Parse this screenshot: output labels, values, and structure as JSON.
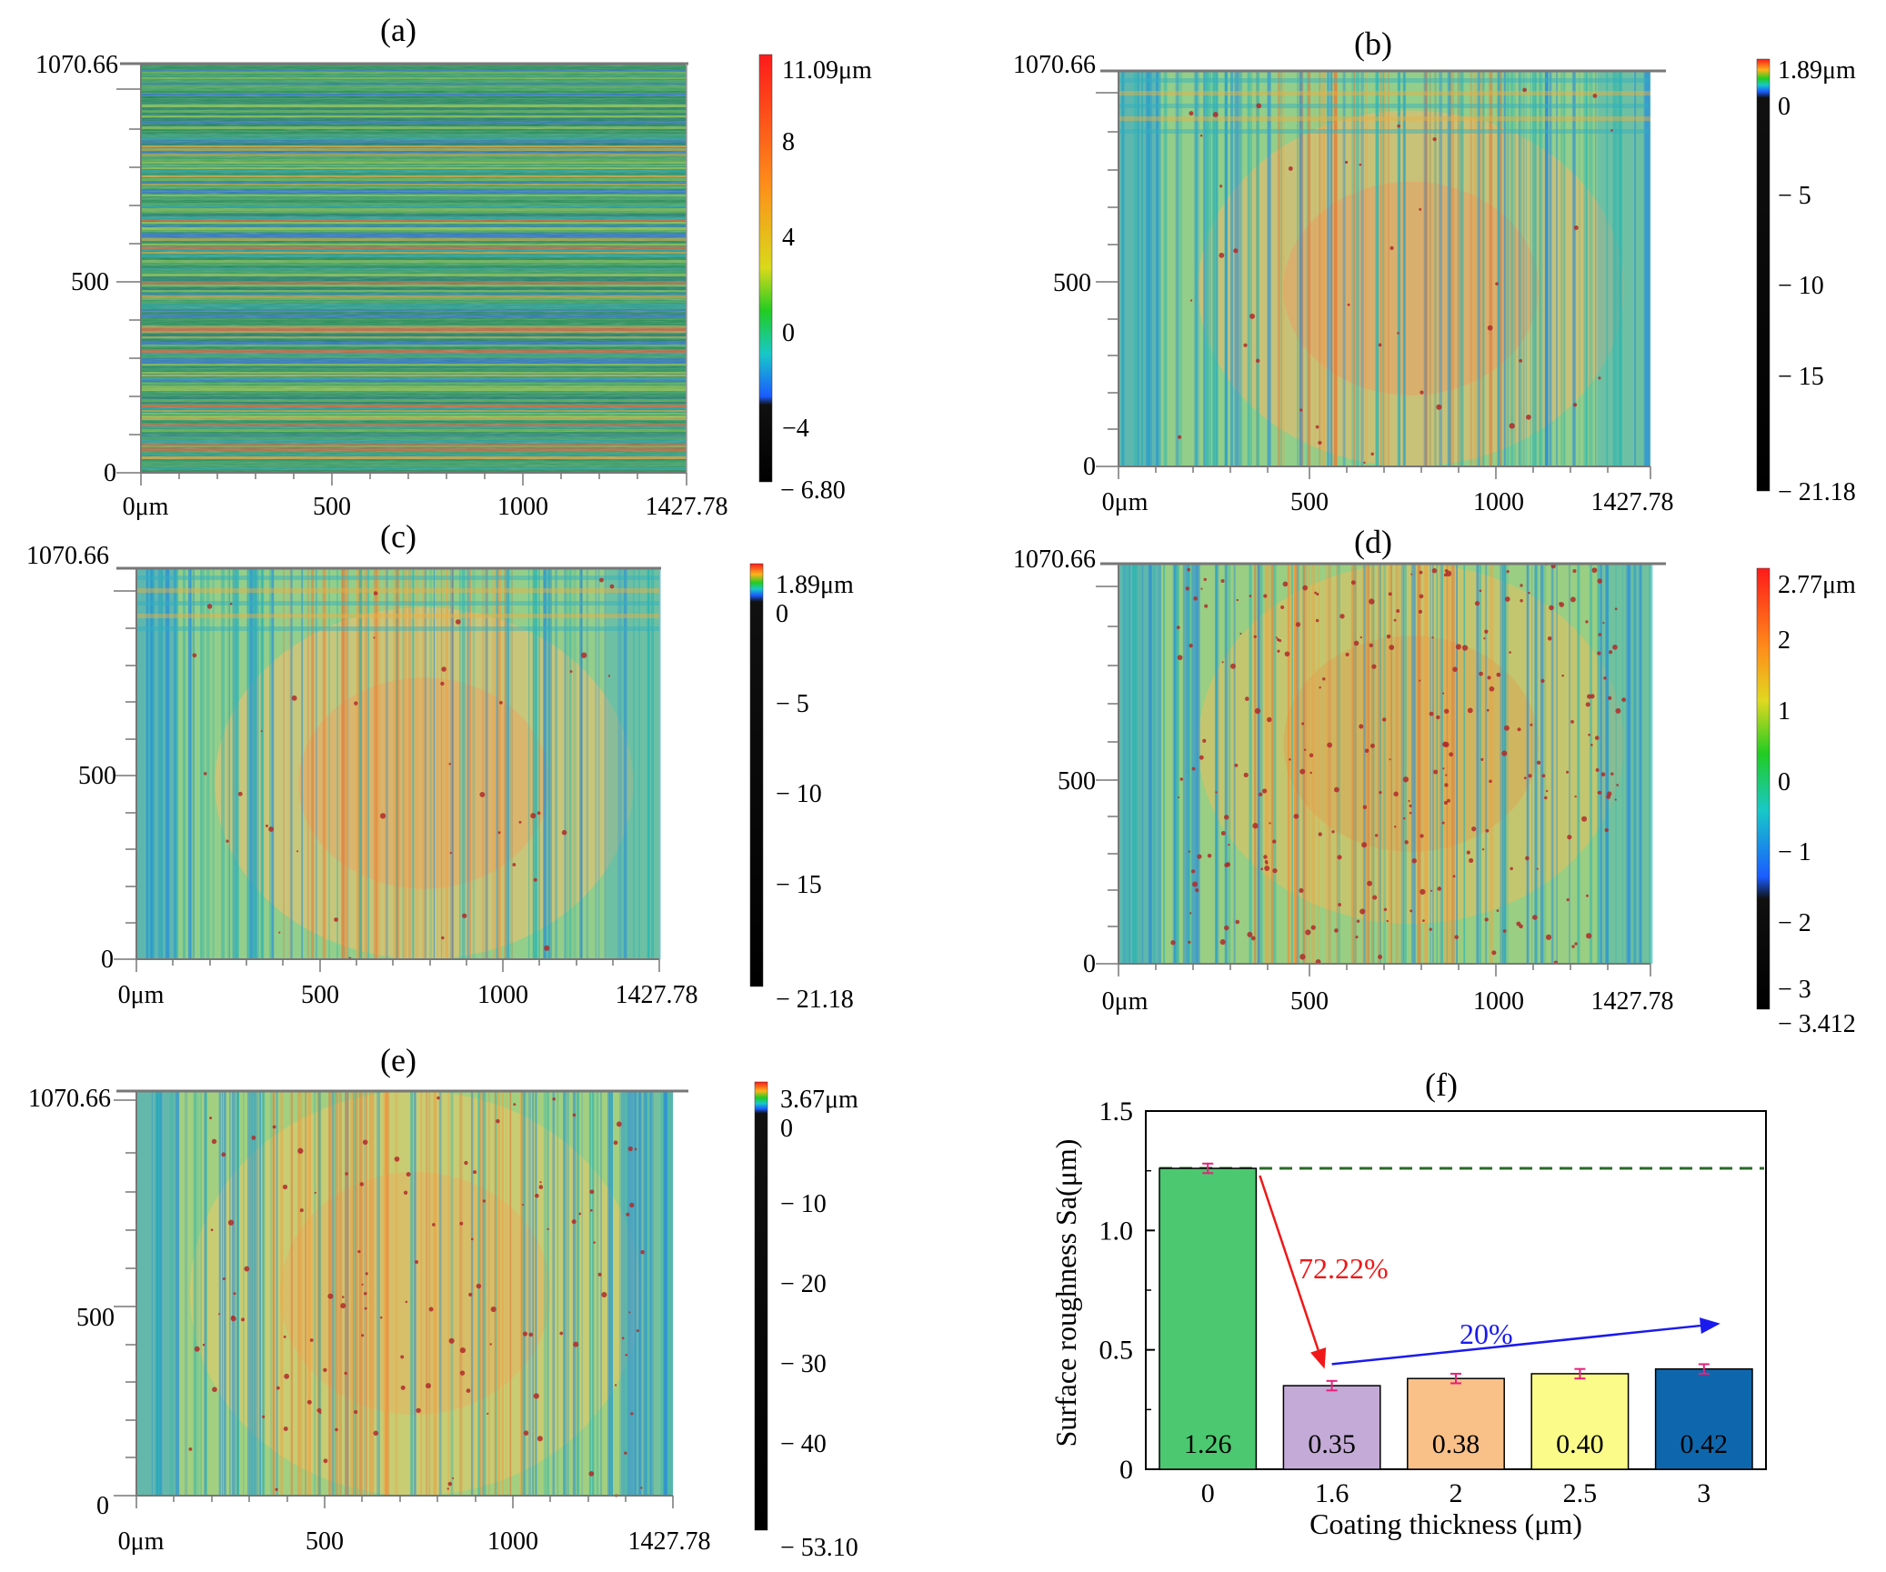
{
  "figure": {
    "panels": [
      {
        "id": "a",
        "label": "(a)",
        "palette": "a",
        "x_ticks": [
          "0μm",
          "500",
          "1000",
          "1427.78"
        ],
        "y_ticks": [
          "0",
          "500",
          "1070.66"
        ],
        "colorbar_ticks": [
          "11.09μm",
          "8",
          "4",
          "0",
          "−4",
          "− 6.80"
        ]
      },
      {
        "id": "b",
        "label": "(b)",
        "palette": "b",
        "x_ticks": [
          "0μm",
          "500",
          "1000",
          "1427.78"
        ],
        "y_ticks": [
          "0",
          "500",
          "1070.66"
        ],
        "colorbar_ticks": [
          "1.89μm",
          "0",
          "− 5",
          "− 10",
          "− 15",
          "− 21.18"
        ]
      },
      {
        "id": "c",
        "label": "(c)",
        "palette": "b",
        "x_ticks": [
          "0μm",
          "500",
          "1000",
          "1427.78"
        ],
        "y_ticks": [
          "0",
          "500",
          "1070.66"
        ],
        "colorbar_ticks": [
          "1.89μm",
          "0",
          "− 5",
          "− 10",
          "− 15",
          "− 21.18"
        ]
      },
      {
        "id": "d",
        "label": "(d)",
        "palette": "d",
        "x_ticks": [
          "0μm",
          "500",
          "1000",
          "1427.78"
        ],
        "y_ticks": [
          "0",
          "500",
          "1070.66"
        ],
        "colorbar_ticks": [
          "2.77μm",
          "2",
          "1",
          "0",
          "− 1",
          "− 2",
          "− 3",
          "− 3.412"
        ]
      },
      {
        "id": "e",
        "label": "(e)",
        "palette": "e",
        "x_ticks": [
          "0μm",
          "500",
          "1000",
          "1427.78"
        ],
        "y_ticks": [
          "0",
          "500",
          "1070.66"
        ],
        "colorbar_ticks": [
          "3.67μm",
          "0",
          "− 10",
          "− 20",
          "− 30",
          "− 40",
          "− 53.10"
        ]
      }
    ]
  },
  "chart_data": {
    "type": "bar",
    "label": "(f)",
    "categories": [
      "0",
      "1.6",
      "2",
      "2.5",
      "3"
    ],
    "values": [
      1.26,
      0.35,
      0.38,
      0.4,
      0.42
    ],
    "value_labels": [
      "1.26",
      "0.35",
      "0.38",
      "0.40",
      "0.42"
    ],
    "errors": [
      0.02,
      0.02,
      0.02,
      0.02,
      0.02
    ],
    "colors": [
      "#4cc870",
      "#c4aad7",
      "#f9c088",
      "#fbfb8a",
      "#0e67ad"
    ],
    "xlabel": "Coating thickness (μm)",
    "ylabel": "Surface roughness Sa(μm)",
    "ylim": [
      0,
      1.5
    ],
    "yticks": [
      "0",
      "0.5",
      "1.0",
      "1.5"
    ],
    "reference_line": 1.26,
    "annotations": {
      "decrease": "72.22%",
      "increase": "20%",
      "decrease_color": "#f01818",
      "increase_color": "#1a1aee",
      "reference_color": "#2a6a2a",
      "error_color": "#e8207a"
    }
  }
}
